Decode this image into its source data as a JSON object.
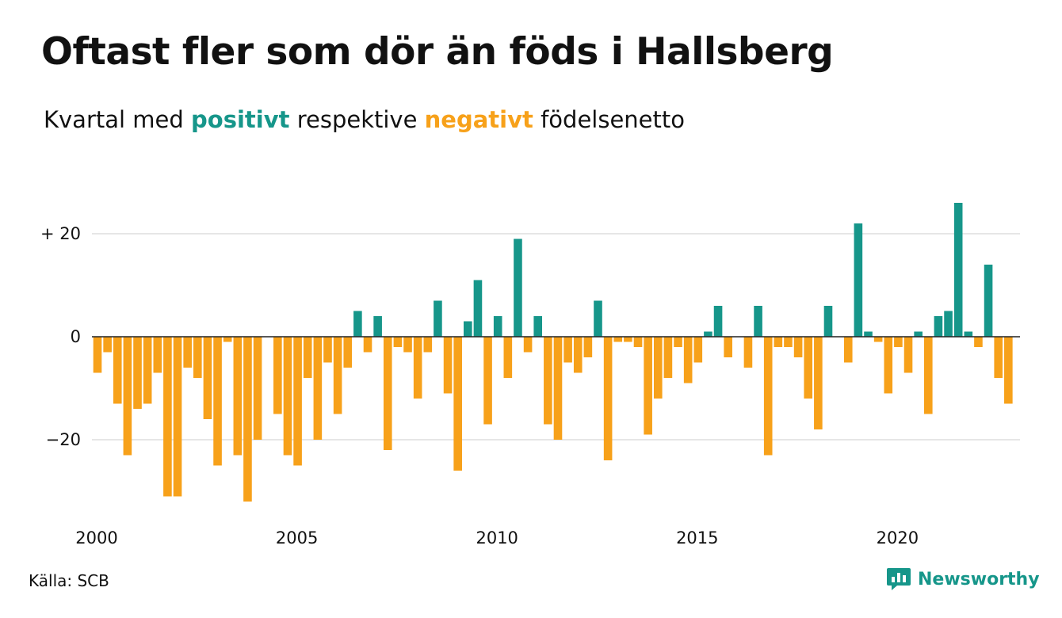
{
  "header": {
    "title": "Oftast fler som dör än föds i Hallsberg",
    "subtitle_prefix": "Kvartal med",
    "subtitle_positive": "positivt",
    "subtitle_middle": "respektive",
    "subtitle_negative": "negativt",
    "subtitle_suffix": "födelsenetto"
  },
  "footer": {
    "source": "Källa: SCB",
    "brand": "Newsworthy"
  },
  "colors": {
    "positive": "#16968a",
    "negative": "#f7a11a",
    "gridline": "#dddddd",
    "zero_line": "#222222",
    "text": "#111111"
  },
  "icons": {
    "brand": "newsworthy-logo-icon"
  },
  "chart_data": {
    "type": "bar",
    "title": "Oftast fler som dör än föds i Hallsberg",
    "subtitle": "Kvartal med positivt respektive negativt födelsenetto",
    "xlabel": "",
    "ylabel": "",
    "start_year": 2000,
    "periods_per_year": 4,
    "x_ticks": [
      2000,
      2005,
      2010,
      2015,
      2020
    ],
    "y_ticks": [
      {
        "value": 20,
        "label": "+ 20"
      },
      {
        "value": 0,
        "label": "0"
      },
      {
        "value": -20,
        "label": "−20"
      }
    ],
    "ylim": [
      -33,
      27
    ],
    "grid": true,
    "legend": "none",
    "values": [
      -7,
      -3,
      -13,
      -23,
      -14,
      -13,
      -7,
      -31,
      -31,
      -6,
      -8,
      -16,
      -25,
      -1,
      -23,
      -32,
      -20,
      0,
      -15,
      -23,
      -25,
      -8,
      -20,
      -5,
      -15,
      -6,
      5,
      -3,
      4,
      -22,
      -2,
      -3,
      -12,
      -3,
      7,
      -11,
      -26,
      3,
      11,
      -17,
      4,
      -8,
      19,
      -3,
      4,
      -17,
      -20,
      -5,
      -7,
      -4,
      7,
      -24,
      -1,
      -1,
      -2,
      -19,
      -12,
      -8,
      -2,
      -9,
      -5,
      1,
      6,
      -4,
      0,
      -6,
      6,
      -23,
      -2,
      -2,
      -4,
      -12,
      -18,
      6,
      0,
      -5,
      22,
      1,
      -1,
      -11,
      -2,
      -7,
      1,
      -15,
      4,
      5,
      26,
      1,
      -2,
      14,
      -8,
      -13
    ]
  }
}
